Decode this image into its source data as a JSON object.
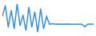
{
  "chart_data": {
    "type": "line",
    "x": [
      1,
      2,
      3,
      4,
      5,
      6,
      7,
      8,
      9,
      10,
      11,
      12,
      13,
      14,
      15,
      16,
      17,
      18,
      19,
      20,
      21,
      22,
      23,
      24,
      25,
      26,
      27,
      28,
      29,
      30,
      31,
      32
    ],
    "values": [
      55,
      90,
      20,
      75,
      15,
      95,
      25,
      60,
      10,
      85,
      20,
      70,
      5,
      80,
      15,
      55,
      30,
      32,
      30,
      31,
      30,
      30,
      31,
      30,
      30,
      30,
      30,
      30,
      22,
      30,
      30,
      30
    ],
    "color": "#3a8fd8",
    "xlim": [
      1,
      32
    ],
    "ylim": [
      0,
      100
    ],
    "grid": false,
    "tick_labels": false
  }
}
